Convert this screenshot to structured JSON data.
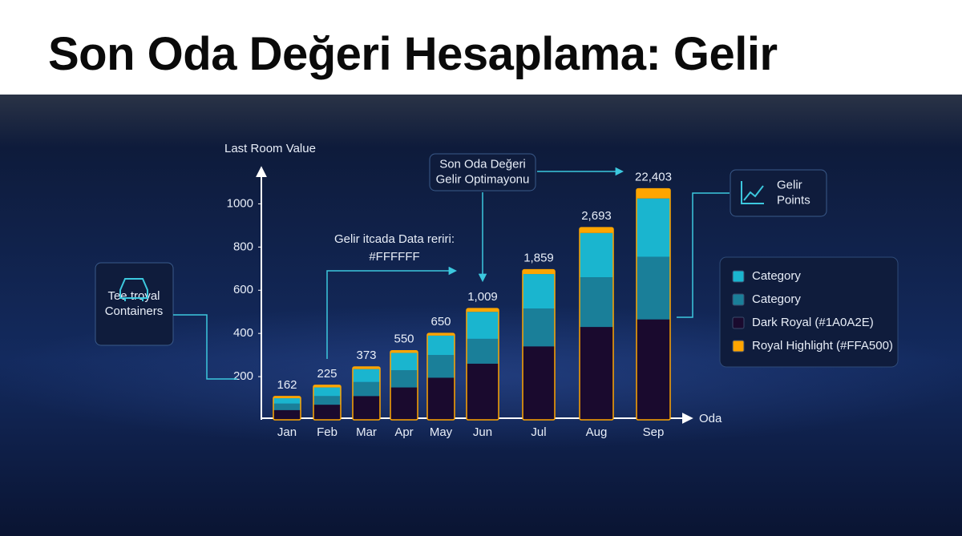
{
  "header": {
    "title": "Son Oda Değeri Hesaplama: Gelir"
  },
  "chart_data": {
    "type": "stacked_bar",
    "y_label": "Last Room Value",
    "x_label": "Oda",
    "categories": [
      "Jan",
      "Feb",
      "Mar",
      "Apr",
      "May",
      "Jun",
      "Jul",
      "Aug",
      "Sep"
    ],
    "series": [
      {
        "name": "Category",
        "color": "#1ab5cf",
        "values": [
          25,
          40,
          60,
          80,
          90,
          125,
          160,
          205,
          270
        ]
      },
      {
        "name": "Category",
        "color": "#1a7f99",
        "values": [
          30,
          40,
          65,
          80,
          105,
          115,
          175,
          230,
          290
        ]
      },
      {
        "name": "Dark Royal (#1A0A2E)",
        "color": "#1a0a2e",
        "values": [
          45,
          70,
          110,
          150,
          195,
          260,
          340,
          430,
          465
        ]
      },
      {
        "name": "Royal Highlight (#FFA500)",
        "color": "#ffa500",
        "values": [
          8,
          10,
          10,
          10,
          10,
          15,
          20,
          25,
          45
        ]
      }
    ],
    "bar_top_labels": [
      "162",
      "225",
      "373",
      "550",
      "650",
      "1,009",
      "1,859",
      "2,693",
      "22,403"
    ],
    "ylim": [
      0,
      1150
    ],
    "yticks": [
      200,
      400,
      600,
      800,
      1000
    ],
    "grid": false,
    "annotations": {
      "optimization": [
        "Son Oda Değeri",
        "Gelir Optimayonu"
      ],
      "data_note": [
        "Gelir itcada Data reriri:",
        "#FFFFFF"
      ],
      "containers": [
        "Tee troyal",
        "Containers"
      ],
      "points": [
        "Gelir",
        "Points"
      ]
    }
  }
}
